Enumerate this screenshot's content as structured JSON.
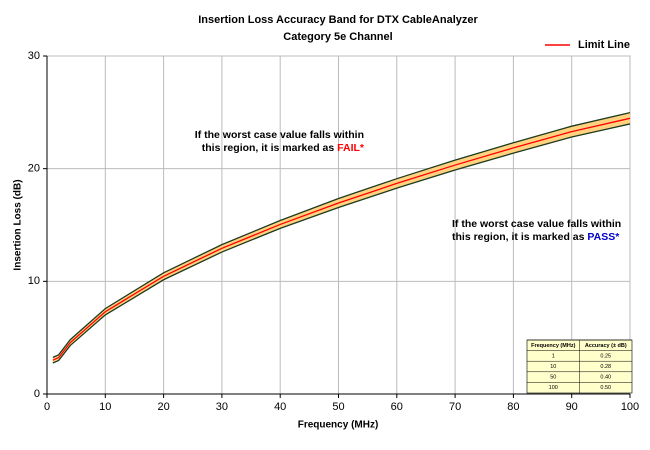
{
  "chart_data": {
    "type": "line",
    "title": "Insertion Loss Accuracy Band for DTX CableAnalyzer",
    "subtitle": "Category 5e Channel",
    "x_label": "Frequency (MHz)",
    "y_label": "Insertion Loss (dB)",
    "x": [
      1,
      2,
      4,
      10,
      20,
      30,
      40,
      50,
      60,
      70,
      80,
      90,
      100
    ],
    "series": [
      {
        "name": "Limit Line",
        "color": "#ff0000",
        "values": [
          3.0,
          3.23,
          4.57,
          7.3,
          10.45,
          12.93,
          15.05,
          16.95,
          18.69,
          20.32,
          21.84,
          23.29,
          24.47
        ]
      },
      {
        "color": "#1f3a1f",
        "values": [
          3.25,
          3.48,
          4.83,
          7.58,
          10.76,
          13.26,
          15.4,
          17.35,
          19.11,
          20.76,
          22.3,
          23.77,
          24.97
        ]
      },
      {
        "color": "#1f3a1f",
        "values": [
          2.75,
          2.98,
          4.31,
          7.02,
          10.14,
          12.6,
          14.7,
          16.55,
          18.27,
          19.88,
          21.38,
          22.81,
          23.97
        ]
      }
    ],
    "band_color": "#ffd27f",
    "xlim": [
      0,
      100
    ],
    "xticks": [
      0,
      10,
      20,
      30,
      40,
      50,
      60,
      70,
      80,
      90,
      100
    ],
    "ylim": [
      0,
      30
    ],
    "yticks": [
      0,
      10,
      20,
      30
    ],
    "grid": true,
    "legend": "top-right",
    "annotations": [
      {
        "lines": [
          "If the worst case value falls within",
          "this region, it is marked as"
        ],
        "highlight": "FAIL*",
        "highlight_color": "#ff0000"
      },
      {
        "lines": [
          "If the worst case value falls within",
          "this region, it is marked as"
        ],
        "highlight": "PASS*",
        "highlight_color": "#0000cc"
      }
    ],
    "table": {
      "header": [
        "Frequency (MHz)",
        "Accuracy (± dB)"
      ],
      "rows": [
        [
          "1",
          "0.25"
        ],
        [
          "10",
          "0.28"
        ],
        [
          "50",
          "0.40"
        ],
        [
          "100",
          "0.50"
        ]
      ]
    }
  }
}
